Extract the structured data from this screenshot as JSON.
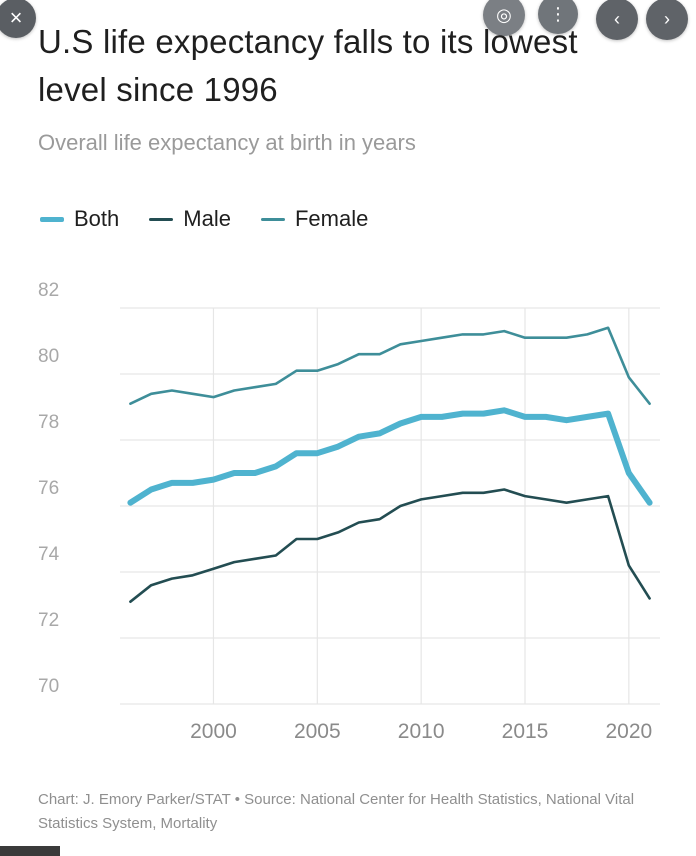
{
  "overlay": {
    "close_glyph": "×",
    "lens_glyph": "◎",
    "more_glyph": "⋮",
    "prev_glyph": "‹",
    "next_glyph": "›"
  },
  "chart_data": {
    "type": "line",
    "title": "U.S life expectancy falls to its lowest level since 1996",
    "subtitle": "Overall life expectancy at birth in years",
    "xlabel": "",
    "ylabel": "",
    "xlim": [
      1995.5,
      2021.5
    ],
    "ylim": [
      70,
      82
    ],
    "y_ticks": [
      "82",
      "80",
      "78",
      "76",
      "74",
      "72",
      "70"
    ],
    "x_ticks": [
      "2000",
      "2005",
      "2010",
      "2015",
      "2020"
    ],
    "grid": true,
    "legend_position": "top-left",
    "x": [
      1996,
      1997,
      1998,
      1999,
      2000,
      2001,
      2002,
      2003,
      2004,
      2005,
      2006,
      2007,
      2008,
      2009,
      2010,
      2011,
      2012,
      2013,
      2014,
      2015,
      2016,
      2017,
      2018,
      2019,
      2020,
      2021
    ],
    "series": [
      {
        "name": "Both",
        "color": "#4fb3cf",
        "values": [
          76.1,
          76.5,
          76.7,
          76.7,
          76.8,
          77.0,
          77.0,
          77.2,
          77.6,
          77.6,
          77.8,
          78.1,
          78.2,
          78.5,
          78.7,
          78.7,
          78.8,
          78.8,
          78.9,
          78.7,
          78.7,
          78.6,
          78.7,
          78.8,
          77.0,
          76.1
        ]
      },
      {
        "name": "Male",
        "color": "#234d52",
        "values": [
          73.1,
          73.6,
          73.8,
          73.9,
          74.1,
          74.3,
          74.4,
          74.5,
          75.0,
          75.0,
          75.2,
          75.5,
          75.6,
          76.0,
          76.2,
          76.3,
          76.4,
          76.4,
          76.5,
          76.3,
          76.2,
          76.1,
          76.2,
          76.3,
          74.2,
          73.2
        ]
      },
      {
        "name": "Female",
        "color": "#3e8e99",
        "values": [
          79.1,
          79.4,
          79.5,
          79.4,
          79.3,
          79.5,
          79.6,
          79.7,
          80.1,
          80.1,
          80.3,
          80.6,
          80.6,
          80.9,
          81.0,
          81.1,
          81.2,
          81.2,
          81.3,
          81.1,
          81.1,
          81.1,
          81.2,
          81.4,
          79.9,
          79.1
        ]
      }
    ],
    "source": "Chart: J. Emory Parker/STAT • Source: National Center for Health Statistics, National Vital Statistics System, Mortality"
  }
}
